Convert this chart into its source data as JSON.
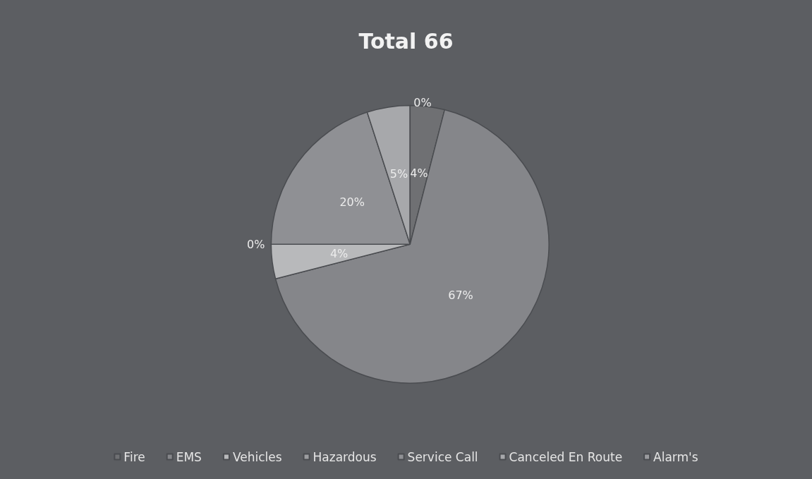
{
  "chart_data": {
    "type": "pie",
    "title": "Total 66",
    "categories": [
      "Fire",
      "EMS",
      "Vehicles",
      "Hazardous",
      "Service Call",
      "Canceled En Route",
      "Alarm's"
    ],
    "values": [
      4,
      67,
      4,
      0,
      20,
      5,
      0
    ],
    "colors": [
      "#6f7073",
      "#85868a",
      "#b8b9bb",
      "#9c9da0",
      "#8f9094",
      "#a7a8ab",
      "#9a9b9e"
    ],
    "value_labels": [
      "4%",
      "67%",
      "4%",
      "0%",
      "20%",
      "5%",
      "0%"
    ],
    "legend": "bottom"
  }
}
